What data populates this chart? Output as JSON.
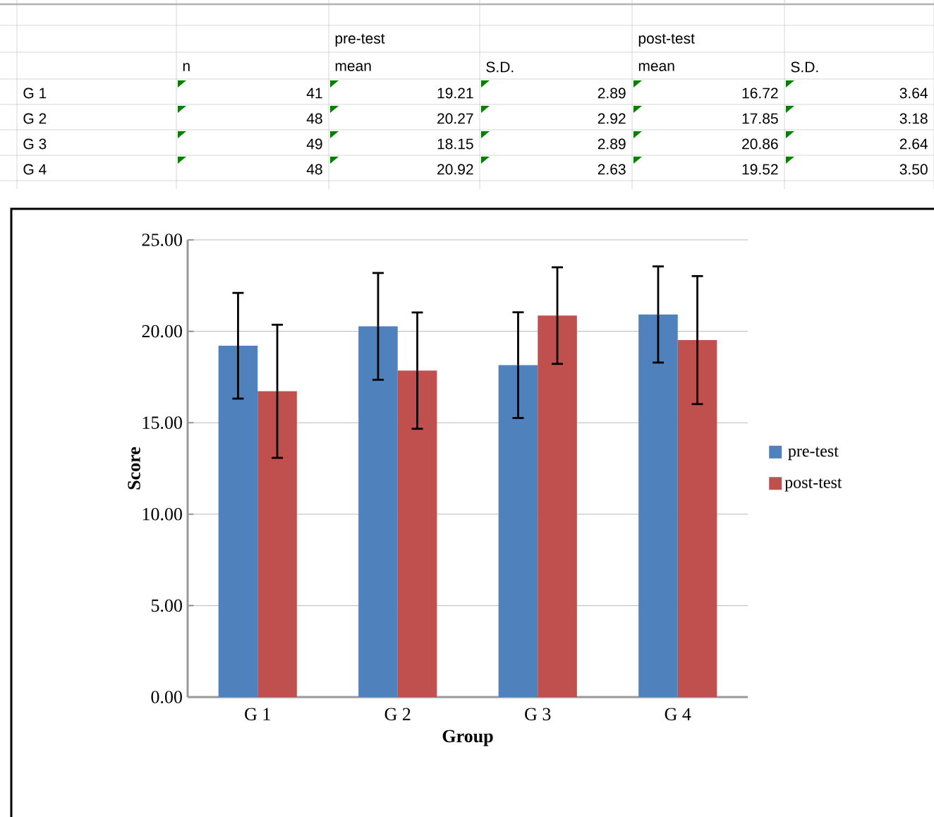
{
  "chart_data": {
    "type": "bar",
    "categories": [
      "G 1",
      "G 2",
      "G 3",
      "G 4"
    ],
    "xlabel": "Group",
    "ylabel": "Score",
    "ylim": [
      0,
      25
    ],
    "yticks": [
      {
        "value": 0,
        "label": "0.00"
      },
      {
        "value": 5,
        "label": "5.00"
      },
      {
        "value": 10,
        "label": "10.00"
      },
      {
        "value": 15,
        "label": "15.00"
      },
      {
        "value": 20,
        "label": "20.00"
      },
      {
        "value": 25,
        "label": "25.00"
      }
    ],
    "grid": "y",
    "legend": "right",
    "annotations": [
      "pre-test",
      "post-test",
      "n",
      "mean",
      "S.D.",
      "mean",
      "S.D.",
      "41",
      "19.21",
      "2.89",
      "16.72",
      "3.64",
      "48",
      "20.27",
      "2.92",
      "17.85",
      "3.18",
      "49",
      "18.15",
      "2.89",
      "20.86",
      "2.64",
      "48",
      "20.92",
      "2.63",
      "19.52",
      "3.50"
    ],
    "series": [
      {
        "name": "pre-test",
        "color": "#4f81bd",
        "values": [
          19.21,
          20.27,
          18.15,
          20.92
        ],
        "errors": [
          2.89,
          2.92,
          2.89,
          2.63
        ]
      },
      {
        "name": "post-test",
        "color": "#c0504d",
        "values": [
          16.72,
          17.85,
          20.86,
          19.52
        ],
        "errors": [
          3.64,
          3.18,
          2.64,
          3.5
        ]
      }
    ]
  }
}
